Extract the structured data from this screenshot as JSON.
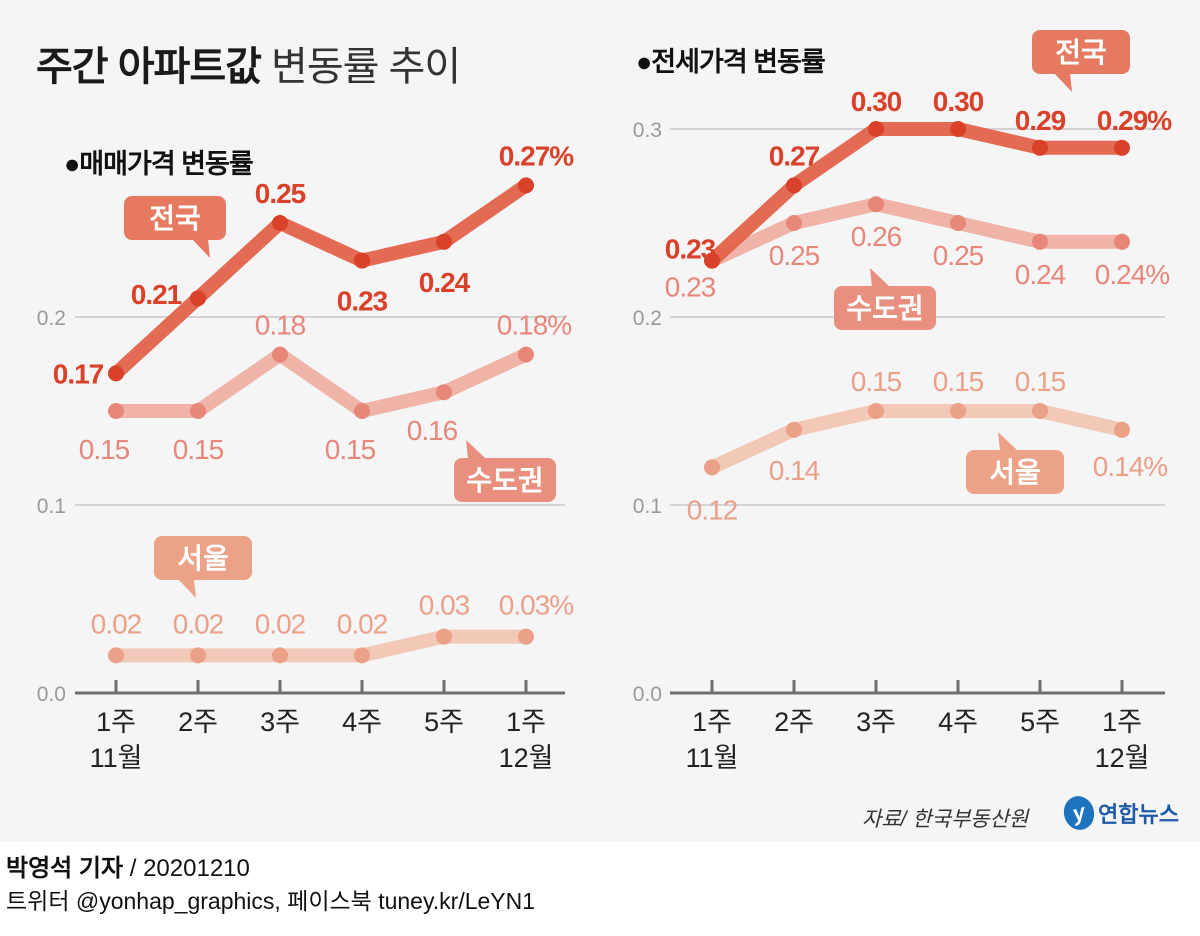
{
  "header": {
    "title_bold": "주간 아파트값",
    "title_light": "변동률 추이"
  },
  "colors": {
    "national": "#e2624a",
    "national_point": "#d9412a",
    "national_label": "#d9412a",
    "capital": "#eda79a",
    "capital_point": "#e7877a",
    "capital_label": "#e7877a",
    "seoul": "#f1c0ab",
    "seoul_point": "#eba088",
    "seoul_label": "#eba088",
    "callout_national": "#e57a60",
    "callout_capital": "#e88f7f",
    "callout_seoul": "#eca287",
    "grid": "#c8c8c8",
    "axis": "#6e6e6e",
    "tick_label": "#9a9a9a"
  },
  "chart_data": [
    {
      "type": "line",
      "title": "●매매가격 변동률",
      "categories": [
        "1주\n11월",
        "2주",
        "3주",
        "4주",
        "5주",
        "1주\n12월"
      ],
      "x_tick_labels": [
        [
          "1주",
          "11월"
        ],
        [
          "2주"
        ],
        [
          "3주"
        ],
        [
          "4주"
        ],
        [
          "5주"
        ],
        [
          "1주",
          "12월"
        ]
      ],
      "ylim": [
        0,
        0.27
      ],
      "y_ticks": [
        0.0,
        0.1,
        0.2
      ],
      "y_tick_labels": [
        "0.0",
        "0.1",
        "0.2"
      ],
      "grid": true,
      "unit": "%",
      "series": [
        {
          "name": "전국",
          "values": [
            0.17,
            0.21,
            0.25,
            0.23,
            0.24,
            0.27
          ],
          "labels": [
            "0.17",
            "0.21",
            "0.25",
            "0.23",
            "0.24",
            "0.27%"
          ]
        },
        {
          "name": "수도권",
          "values": [
            0.15,
            0.15,
            0.18,
            0.15,
            0.16,
            0.18
          ],
          "labels": [
            "0.15",
            "0.15",
            "0.18",
            "0.15",
            "0.16",
            "0.18%"
          ]
        },
        {
          "name": "서울",
          "values": [
            0.02,
            0.02,
            0.02,
            0.02,
            0.03,
            0.03
          ],
          "labels": [
            "0.02",
            "0.02",
            "0.02",
            "0.02",
            "0.03",
            "0.03%"
          ]
        }
      ]
    },
    {
      "type": "line",
      "title": "●전세가격 변동률",
      "categories": [
        "1주\n11월",
        "2주",
        "3주",
        "4주",
        "5주",
        "1주\n12월"
      ],
      "x_tick_labels": [
        [
          "1주",
          "11월"
        ],
        [
          "2주"
        ],
        [
          "3주"
        ],
        [
          "4주"
        ],
        [
          "5주"
        ],
        [
          "1주",
          "12월"
        ]
      ],
      "ylim": [
        0,
        0.3
      ],
      "y_ticks": [
        0.0,
        0.1,
        0.2,
        0.3
      ],
      "y_tick_labels": [
        "0.0",
        "0.1",
        "0.2",
        "0.3"
      ],
      "grid": true,
      "unit": "%",
      "series": [
        {
          "name": "전국",
          "values": [
            0.23,
            0.27,
            0.3,
            0.3,
            0.29,
            0.29
          ],
          "labels": [
            "0.23",
            "0.27",
            "0.30",
            "0.30",
            "0.29",
            "0.29%"
          ]
        },
        {
          "name": "수도권",
          "values": [
            0.23,
            0.25,
            0.26,
            0.25,
            0.24,
            0.24
          ],
          "labels": [
            "0.23",
            "0.25",
            "0.26",
            "0.25",
            "0.24",
            "0.24%"
          ]
        },
        {
          "name": "서울",
          "values": [
            0.12,
            0.14,
            0.15,
            0.15,
            0.15,
            0.14
          ],
          "labels": [
            "0.12",
            "0.14",
            "0.15",
            "0.15",
            "0.15",
            "0.14%"
          ]
        }
      ]
    }
  ],
  "footer": {
    "source": "자료/ 한국부동산원",
    "logo_mark": "y",
    "logo_text": "연합뉴스",
    "reporter": "박영석 기자",
    "date": " /  20201210",
    "social": "트위터 @yonhap_graphics, 페이스북 tuney.kr/LeYN1"
  }
}
